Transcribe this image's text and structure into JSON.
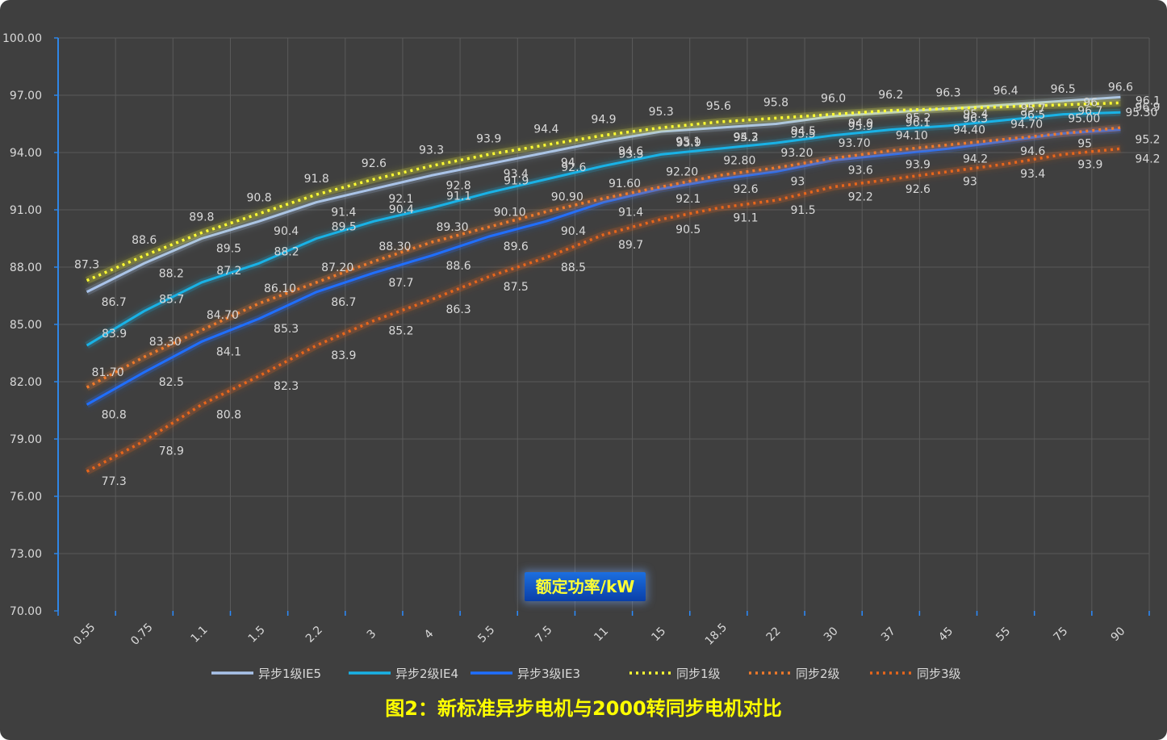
{
  "caption": "图2：新标准异步电机与2000转同步电机对比",
  "chart_data": {
    "type": "line",
    "title": "图2：新标准异步电机与2000转同步电机对比",
    "xlabel": "额定功率/kW",
    "ylabel": "",
    "ylim": [
      70,
      100
    ],
    "yticks": [
      "70.00",
      "73.00",
      "76.00",
      "79.00",
      "82.00",
      "85.00",
      "88.00",
      "91.00",
      "94.00",
      "97.00",
      "100.00"
    ],
    "categories": [
      "0.55",
      "0.75",
      "1.1",
      "1.5",
      "2.2",
      "3",
      "4",
      "5.5",
      "7.5",
      "11",
      "15",
      "18.5",
      "22",
      "30",
      "37",
      "45",
      "55",
      "75",
      "90"
    ],
    "grid": true,
    "legend_position": "bottom",
    "series": [
      {
        "name": "异步1级IE5",
        "color": "#a9c3ea",
        "dash": "solid",
        "values": [
          86.7,
          88.2,
          89.5,
          90.4,
          91.4,
          92.1,
          92.8,
          93.4,
          94,
          94.6,
          95.1,
          95.3,
          95.5,
          95.9,
          96.1,
          96.3,
          96.5,
          96.7,
          96.9
        ],
        "labels": [
          "86.7",
          "88.2",
          "89.5",
          "90.4",
          "91.4",
          "92.1",
          "92.8",
          "93.4",
          "94",
          "94.6",
          "95.1",
          "95.3",
          "95.5",
          "95.9",
          "96.1",
          "96.3",
          "96.5",
          "96.7",
          "96.9"
        ]
      },
      {
        "name": "异步2级IE4",
        "color": "#19b2e6",
        "dash": "solid",
        "values": [
          83.9,
          85.7,
          87.2,
          88.2,
          89.5,
          90.4,
          91.1,
          91.9,
          92.6,
          93.3,
          93.9,
          94.2,
          94.5,
          94.9,
          95.2,
          95.4,
          95.7,
          96,
          96.1
        ],
        "labels": [
          "83.9",
          "85.7",
          "87.2",
          "88.2",
          "89.5",
          "90.4",
          "91.1",
          "91.9",
          "92.6",
          "93.3",
          "93.9",
          "94.2",
          "94.5",
          "94.9",
          "95.2",
          "95.4",
          "95.7",
          "96",
          "96.1"
        ]
      },
      {
        "name": "异步3级IE3",
        "color": "#1f6fff",
        "dash": "solid",
        "values": [
          80.8,
          82.5,
          84.1,
          85.3,
          86.7,
          87.7,
          88.6,
          89.6,
          90.4,
          91.4,
          92.1,
          92.6,
          93,
          93.6,
          93.9,
          94.2,
          94.6,
          95,
          95.2
        ],
        "labels": [
          "80.8",
          "82.5",
          "84.1",
          "85.3",
          "86.7",
          "87.7",
          "88.6",
          "89.6",
          "90.4",
          "91.4",
          "92.1",
          "92.6",
          "93",
          "93.6",
          "93.9",
          "94.2",
          "94.6",
          "95",
          "95.2"
        ]
      },
      {
        "name": "同步1级",
        "color": "#ffff33",
        "dash": "dotted",
        "values": [
          87.3,
          88.6,
          89.8,
          90.8,
          91.8,
          92.6,
          93.3,
          93.9,
          94.4,
          94.9,
          95.3,
          95.6,
          95.8,
          96.0,
          96.2,
          96.3,
          96.4,
          96.5,
          96.6
        ],
        "labels": [
          "87.3",
          "88.6",
          "89.8",
          "90.8",
          "91.8",
          "92.6",
          "93.3",
          "93.9",
          "94.4",
          "94.9",
          "95.3",
          "95.6",
          "95.8",
          "96.0",
          "96.2",
          "96.3",
          "96.4",
          "96.5",
          "96.6"
        ]
      },
      {
        "name": "同步2级",
        "color": "#f07a2a",
        "dash": "dotted",
        "values": [
          81.7,
          83.3,
          84.7,
          86.1,
          87.2,
          88.3,
          89.3,
          90.1,
          90.9,
          91.6,
          92.2,
          92.8,
          93.2,
          93.7,
          94.1,
          94.4,
          94.7,
          95.0,
          95.3
        ],
        "labels": [
          "81.70",
          "83.30",
          "84.70",
          "86.10",
          "87.20",
          "88.30",
          "89.30",
          "90.10",
          "90.90",
          "91.60",
          "92.20",
          "92.80",
          "93.20",
          "93.70",
          "94.10",
          "94.40",
          "94.70",
          "95.00",
          "95.30"
        ]
      },
      {
        "name": "同步3级",
        "color": "#e8661b",
        "dash": "dotted",
        "values": [
          77.3,
          78.9,
          80.8,
          82.3,
          83.9,
          85.2,
          86.3,
          87.5,
          88.5,
          89.7,
          90.5,
          91.1,
          91.5,
          92.2,
          92.6,
          93,
          93.4,
          93.9,
          94.2
        ],
        "labels": [
          "77.3",
          "78.9",
          "80.8",
          "82.3",
          "83.9",
          "85.2",
          "86.3",
          "87.5",
          "88.5",
          "89.7",
          "90.5",
          "91.1",
          "91.5",
          "92.2",
          "92.6",
          "93",
          "93.4",
          "93.9",
          "94.2"
        ]
      }
    ]
  }
}
